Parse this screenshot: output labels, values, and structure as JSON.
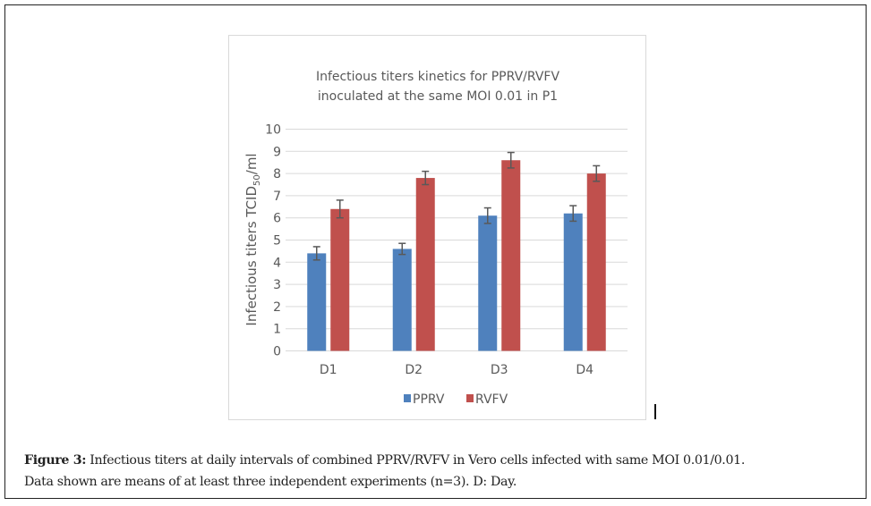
{
  "figure": {
    "caption_label": "Figure 3:",
    "caption_line1": " Infectious titers at daily intervals of combined PPRV/RVFV in Vero cells infected with same MOI 0.01/0.01.",
    "caption_line2": "Data shown are means of at least three independent experiments (n=3). D: Day."
  },
  "chart_data": {
    "type": "bar",
    "title_lines": [
      "Infectious titers kinetics for PPRV/RVFV",
      "inoculated at the same MOI 0.01 in P1"
    ],
    "xlabel": "",
    "ylabel": "Infectious titers TCID50/ml",
    "ylabel_parts": {
      "prefix": "Infectious titers TCID",
      "subscript": "50",
      "suffix": "/ml"
    },
    "ylim": [
      0,
      10
    ],
    "yticks": [
      "0",
      "1",
      "2",
      "3",
      "4",
      "5",
      "6",
      "7",
      "8",
      "9",
      "10"
    ],
    "grid": true,
    "legend_position": "bottom",
    "categories": [
      "D1",
      "D2",
      "D3",
      "D4"
    ],
    "series": [
      {
        "name": "PPRV",
        "color": "#4F81BD",
        "values": [
          4.4,
          4.6,
          6.1,
          6.2
        ],
        "errors": [
          0.3,
          0.25,
          0.35,
          0.35
        ]
      },
      {
        "name": "RVFV",
        "color": "#C0504D",
        "values": [
          6.4,
          7.8,
          8.6,
          8.0
        ],
        "errors": [
          0.4,
          0.3,
          0.35,
          0.35
        ]
      }
    ]
  }
}
